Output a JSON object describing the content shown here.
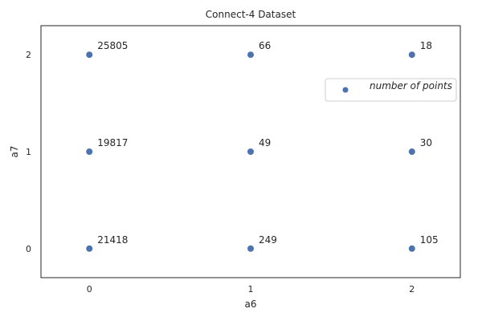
{
  "chart_data": {
    "type": "scatter",
    "title": "Connect-4 Dataset",
    "xlabel": "a6",
    "ylabel": "a7",
    "xlim": [
      -0.3,
      2.3
    ],
    "ylim": [
      -0.3,
      2.3
    ],
    "xticks": [
      0,
      1,
      2
    ],
    "yticks": [
      0,
      1,
      2
    ],
    "grid": false,
    "legend": {
      "position": "right",
      "entries": [
        "number of points"
      ]
    },
    "series": [
      {
        "name": "number of points",
        "color": "#4c72b0",
        "points": [
          {
            "x": 0,
            "y": 2,
            "label": "25805"
          },
          {
            "x": 1,
            "y": 2,
            "label": "66"
          },
          {
            "x": 2,
            "y": 2,
            "label": "18"
          },
          {
            "x": 0,
            "y": 1,
            "label": "19817"
          },
          {
            "x": 1,
            "y": 1,
            "label": "49"
          },
          {
            "x": 2,
            "y": 1,
            "label": "30"
          },
          {
            "x": 0,
            "y": 0,
            "label": "21418"
          },
          {
            "x": 1,
            "y": 0,
            "label": "249"
          },
          {
            "x": 2,
            "y": 0,
            "label": "105"
          }
        ]
      }
    ]
  }
}
